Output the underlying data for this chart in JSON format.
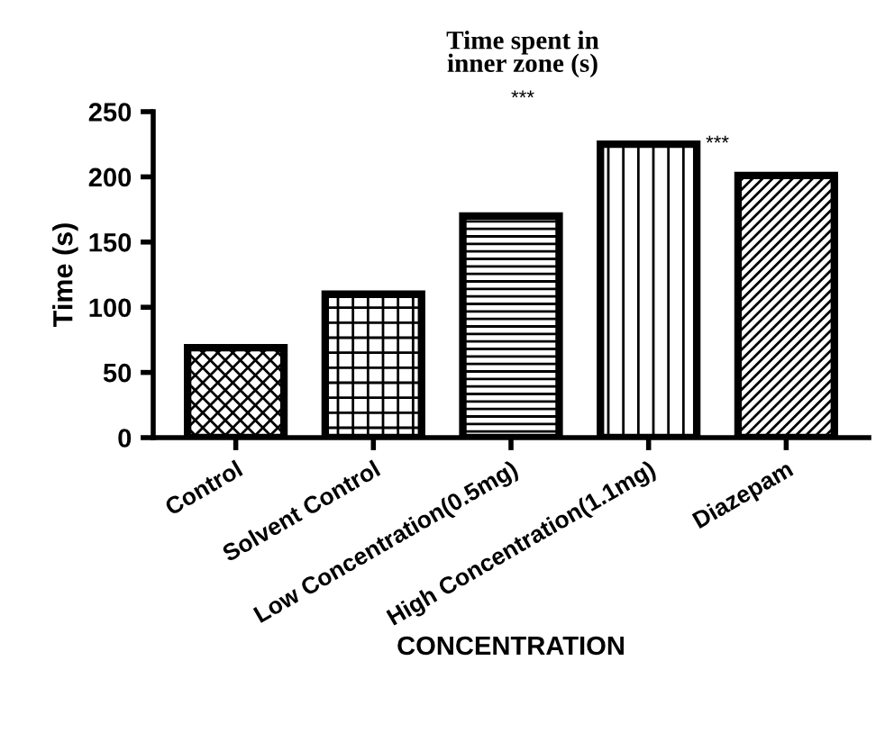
{
  "chart_data": {
    "type": "bar",
    "title": "Time spent in\ninner zone (s)",
    "xlabel": "CONCENTRATION",
    "ylabel": "Time (s)",
    "categories": [
      "Control",
      "Solvent Control",
      "Low Concentration(0.5mg)",
      "High Concentration(1.1mg)",
      "Diazepam"
    ],
    "values": [
      69,
      110,
      170,
      225,
      201
    ],
    "color": "#000000",
    "ylim": [
      0,
      250
    ],
    "yticks": [
      0,
      50,
      100,
      150,
      200,
      250
    ],
    "grid": false,
    "annotations": [
      "***",
      "***"
    ]
  }
}
